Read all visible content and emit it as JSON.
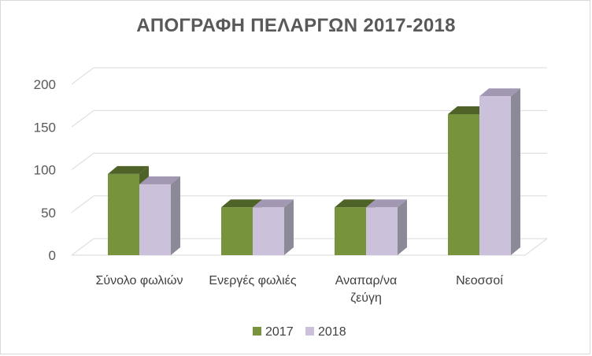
{
  "chart_data": {
    "type": "bar",
    "title": "ΑΠΟΓΡΑΦΗ ΠΕΛΑΡΓΩΝ 2017-2018",
    "categories": [
      [
        "Σύνολο φωλιών"
      ],
      [
        "Ενεργές φωλιές"
      ],
      [
        "Αναπαρ/να",
        "ζεύγη"
      ],
      [
        "Νεοσσοί"
      ]
    ],
    "series": [
      {
        "name": "2017",
        "values": [
          95,
          56,
          56,
          165
        ],
        "color": "#77933c",
        "top_color": "#4f6228",
        "side_color": "#4f6228"
      },
      {
        "name": "2018",
        "values": [
          83,
          56,
          56,
          186
        ],
        "color": "#ccc1da",
        "top_color": "#a398b3",
        "side_color": "#8c8a96"
      }
    ],
    "yticks": [
      0,
      50,
      100,
      150,
      200
    ],
    "ylim": [
      0,
      200
    ],
    "grid": true,
    "legend_position": "bottom",
    "three_d": true
  }
}
